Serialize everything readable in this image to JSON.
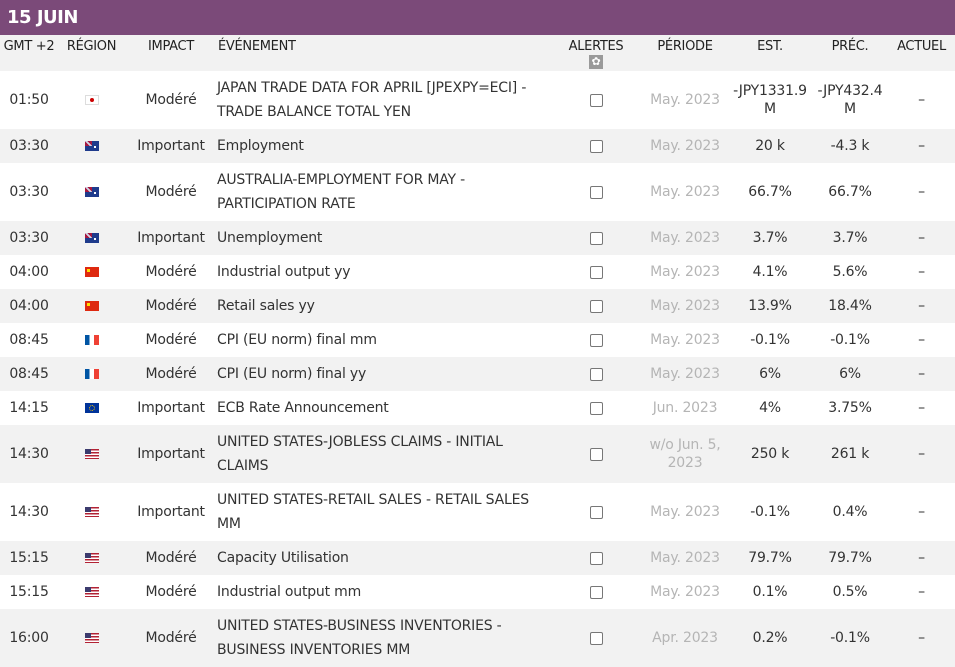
{
  "date_header": "15 JUIN",
  "columns": {
    "gmt": "GMT +2",
    "region": "RÉGION",
    "impact": "IMPACT",
    "event": "ÉVÉNEMENT",
    "alerts": "ALERTES",
    "period": "PÉRIODE",
    "est": "EST.",
    "prev": "PRÉC.",
    "actual": "ACTUEL"
  },
  "alerts_settings_icon": "gear-icon",
  "events": [
    {
      "time": "01:50",
      "region": "JP",
      "flag": "flag-jp",
      "impact": "Modéré",
      "event": "JAPAN TRADE DATA FOR APRIL [JPEXPY=ECI] - TRADE BALANCE TOTAL YEN",
      "period": "May. 2023",
      "est": "-JPY1331.9 M",
      "prev": "-JPY432.4 M",
      "actual": "–",
      "alert": false
    },
    {
      "time": "03:30",
      "region": "AU",
      "flag": "flag-au",
      "impact": "Important",
      "event": "Employment",
      "period": "May. 2023",
      "est": "20 k",
      "prev": "-4.3 k",
      "actual": "–",
      "alert": false
    },
    {
      "time": "03:30",
      "region": "AU",
      "flag": "flag-au",
      "impact": "Modéré",
      "event": "AUSTRALIA-EMPLOYMENT FOR MAY - PARTICIPATION RATE",
      "period": "May. 2023",
      "est": "66.7%",
      "prev": "66.7%",
      "actual": "–",
      "alert": false
    },
    {
      "time": "03:30",
      "region": "AU",
      "flag": "flag-au",
      "impact": "Important",
      "event": "Unemployment",
      "period": "May. 2023",
      "est": "3.7%",
      "prev": "3.7%",
      "actual": "–",
      "alert": false
    },
    {
      "time": "04:00",
      "region": "CN",
      "flag": "flag-cn",
      "impact": "Modéré",
      "event": "Industrial output yy",
      "period": "May. 2023",
      "est": "4.1%",
      "prev": "5.6%",
      "actual": "–",
      "alert": false
    },
    {
      "time": "04:00",
      "region": "CN",
      "flag": "flag-cn",
      "impact": "Modéré",
      "event": "Retail sales yy",
      "period": "May. 2023",
      "est": "13.9%",
      "prev": "18.4%",
      "actual": "–",
      "alert": false
    },
    {
      "time": "08:45",
      "region": "FR",
      "flag": "flag-fr",
      "impact": "Modéré",
      "event": "CPI (EU norm) final mm",
      "period": "May. 2023",
      "est": "-0.1%",
      "prev": "-0.1%",
      "actual": "–",
      "alert": false
    },
    {
      "time": "08:45",
      "region": "FR",
      "flag": "flag-fr",
      "impact": "Modéré",
      "event": "CPI (EU norm) final yy",
      "period": "May. 2023",
      "est": "6%",
      "prev": "6%",
      "actual": "–",
      "alert": false
    },
    {
      "time": "14:15",
      "region": "EU",
      "flag": "flag-eu",
      "impact": "Important",
      "event": "ECB Rate Announcement",
      "period": "Jun. 2023",
      "est": "4%",
      "prev": "3.75%",
      "actual": "–",
      "alert": false
    },
    {
      "time": "14:30",
      "region": "US",
      "flag": "flag-us",
      "impact": "Important",
      "event": "UNITED STATES-JOBLESS CLAIMS - INITIAL CLAIMS",
      "period": "w/o Jun. 5, 2023",
      "est": "250 k",
      "prev": "261 k",
      "actual": "–",
      "alert": false
    },
    {
      "time": "14:30",
      "region": "US",
      "flag": "flag-us",
      "impact": "Important",
      "event": "UNITED STATES-RETAIL SALES - RETAIL SALES MM",
      "period": "May. 2023",
      "est": "-0.1%",
      "prev": "0.4%",
      "actual": "–",
      "alert": false
    },
    {
      "time": "15:15",
      "region": "US",
      "flag": "flag-us",
      "impact": "Modéré",
      "event": "Capacity Utilisation",
      "period": "May. 2023",
      "est": "79.7%",
      "prev": "79.7%",
      "actual": "–",
      "alert": false
    },
    {
      "time": "15:15",
      "region": "US",
      "flag": "flag-us",
      "impact": "Modéré",
      "event": "Industrial output mm",
      "period": "May. 2023",
      "est": "0.1%",
      "prev": "0.5%",
      "actual": "–",
      "alert": false
    },
    {
      "time": "16:00",
      "region": "US",
      "flag": "flag-us",
      "impact": "Modéré",
      "event": "UNITED STATES-BUSINESS INVENTORIES - BUSINESS INVENTORIES MM",
      "period": "Apr. 2023",
      "est": "0.2%",
      "prev": "-0.1%",
      "actual": "–",
      "alert": false
    }
  ]
}
